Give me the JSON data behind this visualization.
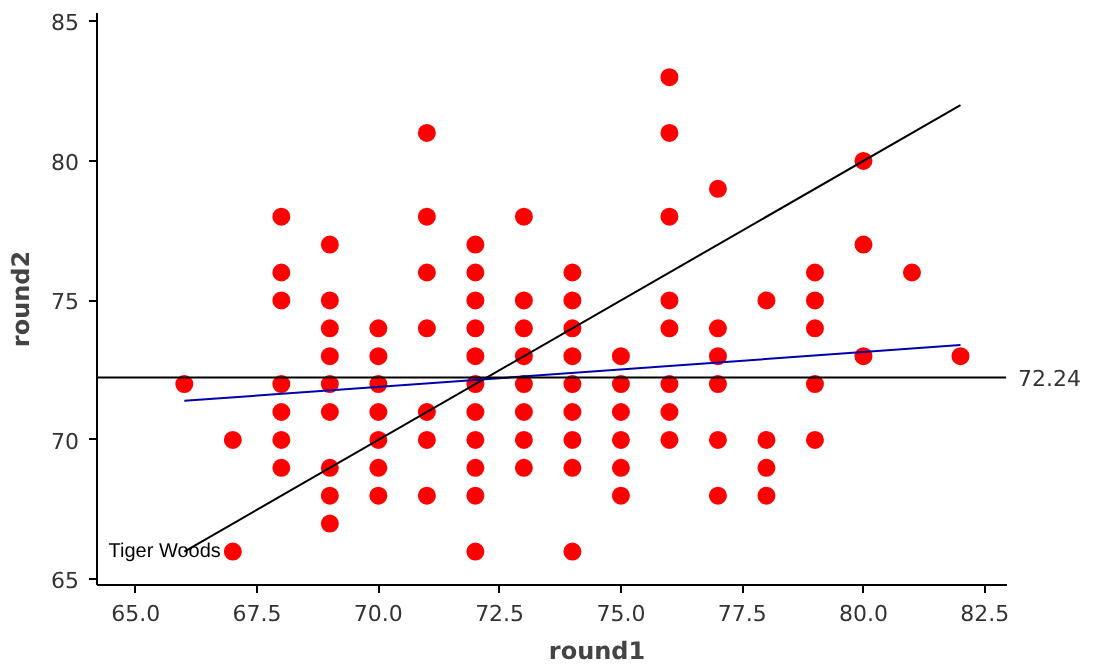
{
  "chart_data": {
    "type": "scatter",
    "xlabel": "round1",
    "ylabel": "round2",
    "xlim": [
      64.2,
      82.94
    ],
    "ylim": [
      64.8,
      85.3
    ],
    "xticks": [
      {
        "value": 65,
        "label": "65.0"
      },
      {
        "value": 67.5,
        "label": "67.5"
      },
      {
        "value": 70,
        "label": "70.0"
      },
      {
        "value": 72.5,
        "label": "72.5"
      },
      {
        "value": 75,
        "label": "75.0"
      },
      {
        "value": 77.5,
        "label": "77.5"
      },
      {
        "value": 80,
        "label": "80.0"
      },
      {
        "value": 82.5,
        "label": "82.5"
      }
    ],
    "yticks": [
      65,
      70,
      75,
      80,
      85
    ],
    "grid": false,
    "series": [
      {
        "color": "#ff0000",
        "marker": "circle",
        "x": [
          66,
          67,
          67,
          68,
          68,
          68,
          68,
          68,
          68,
          68,
          69,
          69,
          69,
          69,
          69,
          69,
          69,
          69,
          69,
          70,
          70,
          70,
          70,
          70,
          70,
          70,
          71,
          71,
          71,
          71,
          71,
          71,
          71,
          72,
          72,
          72,
          72,
          72,
          72,
          72,
          72,
          72,
          72,
          72,
          73,
          73,
          73,
          73,
          73,
          73,
          73,
          73,
          74,
          74,
          74,
          74,
          74,
          74,
          74,
          74,
          74,
          75,
          75,
          75,
          75,
          75,
          75,
          76,
          76,
          76,
          76,
          76,
          76,
          76,
          76,
          77,
          77,
          77,
          77,
          77,
          77,
          78,
          78,
          78,
          78,
          79,
          79,
          79,
          79,
          79,
          80,
          80,
          80,
          81,
          82
        ],
        "values": [
          72,
          70,
          66,
          78,
          76,
          75,
          72,
          71,
          70,
          69,
          77,
          75,
          74,
          73,
          72,
          71,
          69,
          68,
          67,
          74,
          73,
          72,
          71,
          70,
          69,
          68,
          81,
          78,
          76,
          74,
          71,
          70,
          68,
          77,
          76,
          75,
          74,
          73,
          72,
          71,
          70,
          69,
          68,
          66,
          78,
          75,
          74,
          73,
          72,
          71,
          70,
          69,
          76,
          75,
          74,
          73,
          72,
          71,
          70,
          69,
          66,
          73,
          72,
          71,
          70,
          69,
          68,
          83,
          81,
          78,
          75,
          74,
          72,
          71,
          70,
          79,
          74,
          73,
          72,
          70,
          68,
          75,
          70,
          69,
          68,
          76,
          75,
          74,
          72,
          70,
          80,
          77,
          73,
          76,
          73
        ]
      },
      {
        "type": "line",
        "color": "#000000",
        "marker": "none",
        "line_style": "solid",
        "x": [
          66,
          82
        ],
        "values": [
          66,
          82
        ]
      },
      {
        "type": "line",
        "color": "#0000aa",
        "marker": "none",
        "line_style": "solid",
        "x": [
          66,
          82
        ],
        "values": [
          71.4,
          73.4
        ]
      }
    ],
    "ref_lines": [
      {
        "axis": "y",
        "value": 72.24,
        "label": "72.24",
        "color": "#000000"
      }
    ],
    "annotations": [
      {
        "text": "Tiger Woods",
        "x": 67,
        "y": 66
      }
    ]
  }
}
